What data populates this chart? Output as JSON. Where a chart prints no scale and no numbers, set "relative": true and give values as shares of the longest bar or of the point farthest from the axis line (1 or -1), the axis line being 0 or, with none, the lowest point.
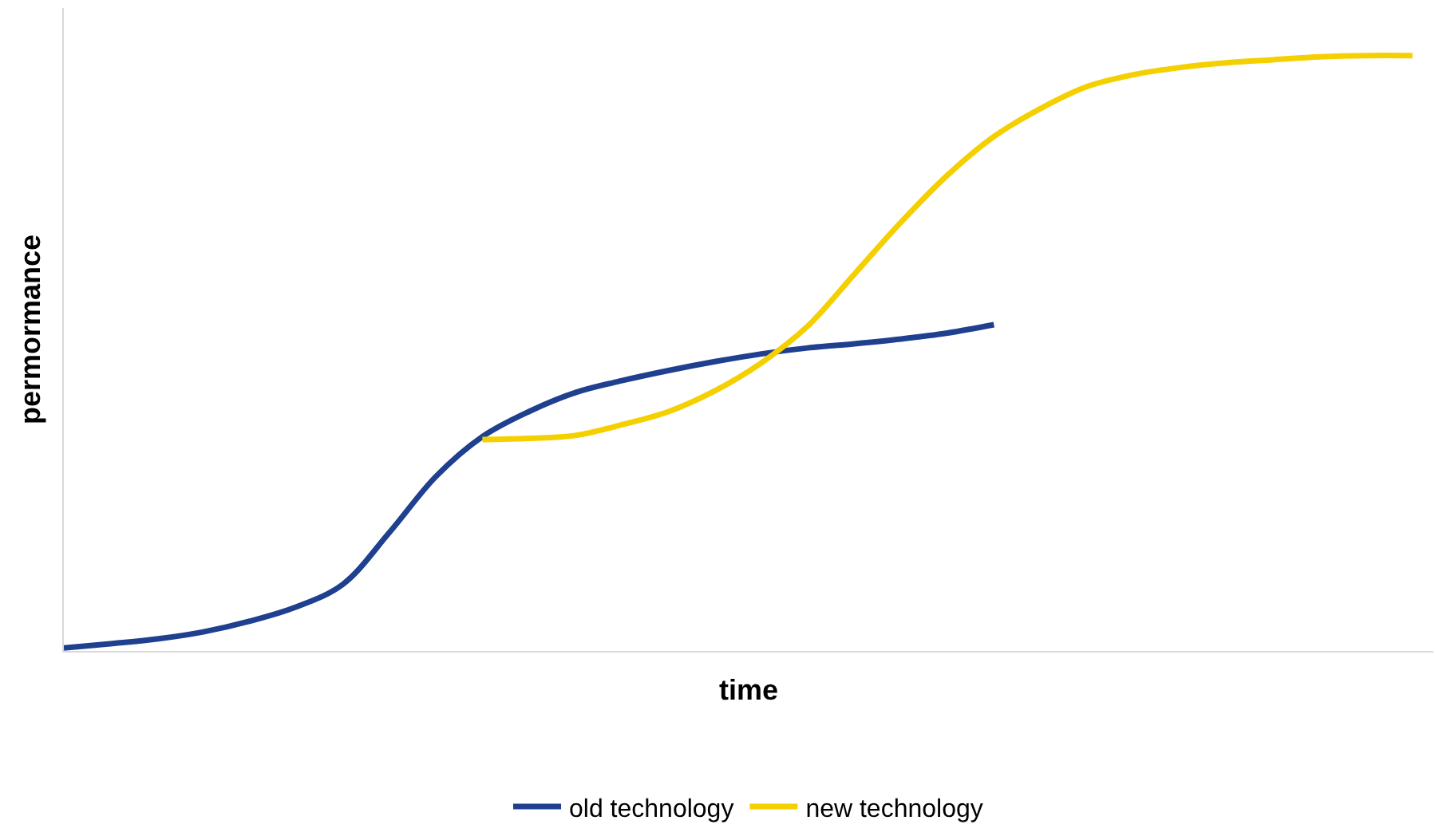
{
  "chart_data": {
    "type": "line",
    "relative": true,
    "xlabel": "time",
    "ylabel": "permormance",
    "categories": [
      null,
      null,
      null,
      null,
      null,
      null,
      null,
      null,
      null,
      null,
      null,
      null,
      null,
      null,
      null,
      null,
      null,
      null,
      null,
      null,
      null,
      null,
      null,
      null,
      null,
      null,
      null,
      null,
      null,
      null
    ],
    "series": [
      {
        "name": "old technology",
        "color": "#1f3f8f",
        "values": [
          0.005,
          0.012,
          0.02,
          0.032,
          0.05,
          0.074,
          0.112,
          0.199,
          0.293,
          0.36,
          0.402,
          0.434,
          0.454,
          0.471,
          0.486,
          0.499,
          0.509,
          0.516,
          0.524,
          0.534,
          0.548,
          null,
          null,
          null,
          null,
          null,
          null,
          null,
          null,
          null
        ]
      },
      {
        "name": "new technology",
        "color": "#f5d000",
        "values": [
          null,
          null,
          null,
          null,
          null,
          null,
          null,
          null,
          null,
          0.355,
          0.357,
          0.362,
          0.38,
          0.402,
          0.437,
          0.484,
          0.546,
          0.633,
          0.72,
          0.799,
          0.864,
          0.911,
          0.948,
          0.968,
          0.98,
          0.988,
          0.993,
          0.998,
          1.0,
          1.0
        ]
      }
    ],
    "legend": "bottom",
    "marker": "none",
    "line_style": "solid"
  }
}
